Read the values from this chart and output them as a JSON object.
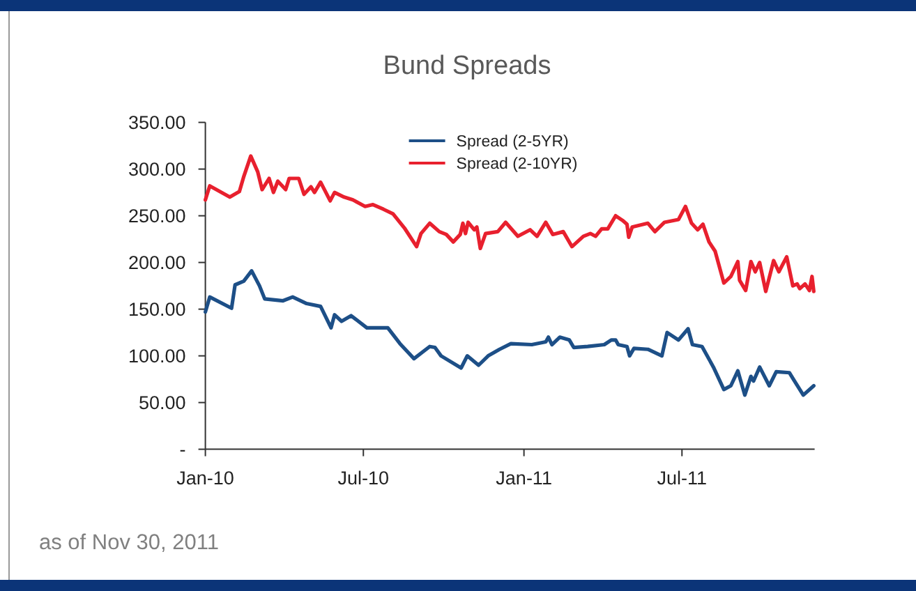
{
  "chart_data": {
    "type": "line",
    "title": "Bund Spreads",
    "annotations": [
      "as of Nov 30, 2011"
    ],
    "xlim": [
      "2010-01-01",
      "2011-11-30"
    ],
    "xticks": [
      {
        "value": "2010-01-01",
        "label": "Jan-10"
      },
      {
        "value": "2010-07-01",
        "label": "Jul-10"
      },
      {
        "value": "2011-01-01",
        "label": "Jan-11"
      },
      {
        "value": "2011-07-01",
        "label": "Jul-11"
      }
    ],
    "ylim": [
      0,
      350
    ],
    "yticks": [
      {
        "value": 0,
        "label": "-"
      },
      {
        "value": 50,
        "label": "50.00"
      },
      {
        "value": 100,
        "label": "100.00"
      },
      {
        "value": 150,
        "label": "150.00"
      },
      {
        "value": 200,
        "label": "200.00"
      },
      {
        "value": 250,
        "label": "250.00"
      },
      {
        "value": 300,
        "label": "300.00"
      },
      {
        "value": 350,
        "label": "350.00"
      }
    ],
    "legend": "top",
    "series": [
      {
        "name": "Spread (2-5YR)",
        "color": "#1d4f87",
        "x": [
          "2010-01-01",
          "2010-01-06",
          "2010-01-31",
          "2010-02-04",
          "2010-02-14",
          "2010-02-23",
          "2010-03-04",
          "2010-03-10",
          "2010-03-31",
          "2010-04-11",
          "2010-04-27",
          "2010-05-13",
          "2010-05-25",
          "2010-05-29",
          "2010-06-06",
          "2010-06-17",
          "2010-07-05",
          "2010-07-29",
          "2010-08-12",
          "2010-08-28",
          "2010-09-15",
          "2010-09-21",
          "2010-09-28",
          "2010-10-21",
          "2010-10-28",
          "2010-11-10",
          "2010-11-21",
          "2010-12-04",
          "2010-12-17",
          "2011-01-10",
          "2011-01-26",
          "2011-01-29",
          "2011-02-02",
          "2011-02-11",
          "2011-02-22",
          "2011-02-27",
          "2011-03-15",
          "2011-04-03",
          "2011-04-11",
          "2011-04-16",
          "2011-04-19",
          "2011-04-29",
          "2011-05-02",
          "2011-05-07",
          "2011-05-23",
          "2011-06-08",
          "2011-06-14",
          "2011-06-27",
          "2011-07-08",
          "2011-07-13",
          "2011-07-24",
          "2011-08-06",
          "2011-08-18",
          "2011-08-26",
          "2011-09-03",
          "2011-09-11",
          "2011-09-18",
          "2011-09-21",
          "2011-09-28",
          "2011-10-09",
          "2011-10-17",
          "2011-11-01",
          "2011-11-07",
          "2011-11-17",
          "2011-11-29"
        ],
        "values": [
          147,
          163,
          151,
          176,
          180,
          191,
          175,
          161,
          159,
          163,
          156,
          153,
          130,
          144,
          137,
          143,
          130,
          130,
          113,
          97,
          110,
          109,
          100,
          87,
          100,
          90,
          100,
          107,
          113,
          112,
          115,
          120,
          112,
          120,
          117,
          109,
          110,
          112,
          117,
          117,
          112,
          110,
          100,
          108,
          107,
          100,
          125,
          117,
          129,
          112,
          110,
          88,
          64,
          68,
          84,
          58,
          78,
          73,
          88,
          68,
          83,
          82,
          73,
          58,
          68
        ]
      },
      {
        "name": "Spread (2-10YR)",
        "color": "#e8202e",
        "x": [
          "2010-01-01",
          "2010-01-06",
          "2010-01-29",
          "2010-02-09",
          "2010-02-14",
          "2010-02-22",
          "2010-03-02",
          "2010-03-07",
          "2010-03-15",
          "2010-03-20",
          "2010-03-25",
          "2010-04-03",
          "2010-04-07",
          "2010-04-18",
          "2010-04-24",
          "2010-05-02",
          "2010-05-06",
          "2010-05-13",
          "2010-05-24",
          "2010-05-29",
          "2010-06-09",
          "2010-06-19",
          "2010-07-03",
          "2010-07-12",
          "2010-07-24",
          "2010-08-04",
          "2010-08-17",
          "2010-08-31",
          "2010-09-05",
          "2010-09-15",
          "2010-09-26",
          "2010-10-04",
          "2010-10-12",
          "2010-10-20",
          "2010-10-23",
          "2010-10-26",
          "2010-10-29",
          "2010-11-05",
          "2010-11-08",
          "2010-11-12",
          "2010-11-18",
          "2010-12-02",
          "2010-12-11",
          "2010-12-25",
          "2011-01-08",
          "2011-01-16",
          "2011-01-26",
          "2011-02-03",
          "2011-02-15",
          "2011-02-25",
          "2011-03-10",
          "2011-03-18",
          "2011-03-24",
          "2011-03-31",
          "2011-04-07",
          "2011-04-16",
          "2011-04-24",
          "2011-04-29",
          "2011-05-01",
          "2011-05-05",
          "2011-05-23",
          "2011-05-31",
          "2011-06-11",
          "2011-06-27",
          "2011-07-05",
          "2011-07-12",
          "2011-07-19",
          "2011-07-25",
          "2011-08-01",
          "2011-08-08",
          "2011-08-18",
          "2011-08-26",
          "2011-09-03",
          "2011-09-05",
          "2011-09-12",
          "2011-09-18",
          "2011-09-23",
          "2011-09-28",
          "2011-10-05",
          "2011-10-14",
          "2011-10-20",
          "2011-10-29",
          "2011-11-05",
          "2011-11-10",
          "2011-11-13",
          "2011-11-19",
          "2011-11-24",
          "2011-11-27",
          "2011-11-29"
        ],
        "values": [
          267,
          282,
          270,
          276,
          292,
          314,
          297,
          278,
          290,
          275,
          287,
          278,
          290,
          290,
          273,
          281,
          275,
          286,
          266,
          275,
          270,
          267,
          260,
          262,
          257,
          252,
          237,
          217,
          231,
          242,
          233,
          230,
          222,
          230,
          242,
          231,
          243,
          235,
          238,
          215,
          231,
          233,
          243,
          228,
          235,
          228,
          243,
          230,
          233,
          217,
          228,
          231,
          228,
          236,
          236,
          250,
          245,
          241,
          227,
          238,
          242,
          233,
          243,
          246,
          260,
          242,
          235,
          241,
          222,
          212,
          178,
          185,
          201,
          181,
          170,
          201,
          190,
          200,
          169,
          202,
          190,
          206,
          175,
          177,
          172,
          177,
          170,
          185,
          169
        ]
      }
    ]
  }
}
